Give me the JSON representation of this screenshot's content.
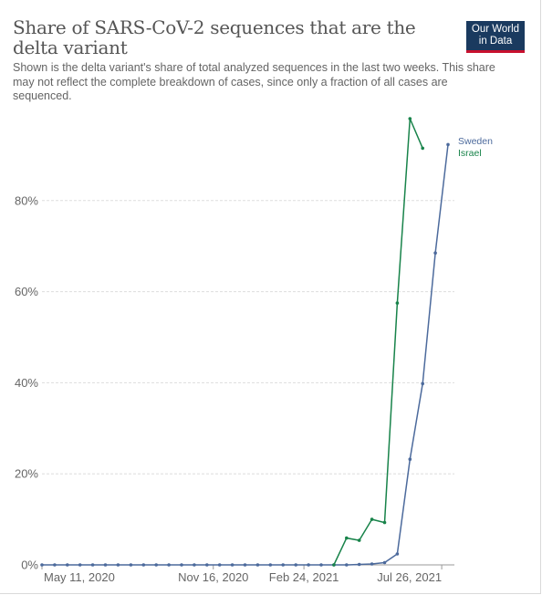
{
  "header": {
    "title": "Share of SARS-CoV-2 sequences that are the delta variant",
    "subtitle": "Shown is the delta variant's share of total analyzed sequences in the last two weeks. This share may not reflect the complete breakdown of cases, since only a fraction of all cases are sequenced.",
    "logo_line1": "Our World",
    "logo_line2": "in Data"
  },
  "chart_data": {
    "type": "line",
    "title": "Share of SARS-CoV-2 sequences that are the delta variant",
    "xlabel": "",
    "ylabel": "",
    "ylim": [
      0,
      100
    ],
    "y_ticks": [
      "0%",
      "20%",
      "40%",
      "60%",
      "80%"
    ],
    "x_tick_labels": [
      {
        "label": "May 11, 2020",
        "date": "2020-05-11"
      },
      {
        "label": "Nov 16, 2020",
        "date": "2020-11-16"
      },
      {
        "label": "Feb 24, 2021",
        "date": "2021-02-24"
      },
      {
        "label": "Jul 26, 2021",
        "date": "2021-07-26"
      }
    ],
    "x_range": [
      "2020-05-11",
      "2021-08-09"
    ],
    "grid": "horizontal dashed",
    "legend": "end-of-line labels",
    "series": [
      {
        "name": "Sweden",
        "color": "#4c6a9c",
        "points": [
          [
            "2020-05-11",
            0
          ],
          [
            "2020-05-25",
            0
          ],
          [
            "2020-06-08",
            0
          ],
          [
            "2020-06-22",
            0
          ],
          [
            "2020-07-06",
            0
          ],
          [
            "2020-07-20",
            0
          ],
          [
            "2020-08-03",
            0
          ],
          [
            "2020-08-17",
            0
          ],
          [
            "2020-08-31",
            0
          ],
          [
            "2020-09-14",
            0
          ],
          [
            "2020-09-28",
            0
          ],
          [
            "2020-10-12",
            0
          ],
          [
            "2020-10-26",
            0
          ],
          [
            "2020-11-09",
            0
          ],
          [
            "2020-11-23",
            0
          ],
          [
            "2020-12-07",
            0
          ],
          [
            "2020-12-21",
            0
          ],
          [
            "2021-01-04",
            0
          ],
          [
            "2021-01-18",
            0
          ],
          [
            "2021-02-01",
            0
          ],
          [
            "2021-02-15",
            0
          ],
          [
            "2021-03-01",
            0
          ],
          [
            "2021-03-15",
            0
          ],
          [
            "2021-03-29",
            0
          ],
          [
            "2021-04-12",
            0
          ],
          [
            "2021-04-26",
            0.1
          ],
          [
            "2021-05-10",
            0.2
          ],
          [
            "2021-05-24",
            0.5
          ],
          [
            "2021-06-07",
            2.4
          ],
          [
            "2021-06-21",
            23.2
          ],
          [
            "2021-07-05",
            39.8
          ],
          [
            "2021-07-19",
            68.5
          ],
          [
            "2021-08-02",
            92.3
          ]
        ]
      },
      {
        "name": "Israel",
        "color": "#18834a",
        "points": [
          [
            "2021-03-29",
            0
          ],
          [
            "2021-04-12",
            5.9
          ],
          [
            "2021-04-26",
            5.4
          ],
          [
            "2021-05-10",
            10.0
          ],
          [
            "2021-05-24",
            9.3
          ],
          [
            "2021-06-07",
            57.5
          ],
          [
            "2021-06-21",
            98.0
          ],
          [
            "2021-07-05",
            91.5
          ]
        ]
      }
    ]
  }
}
